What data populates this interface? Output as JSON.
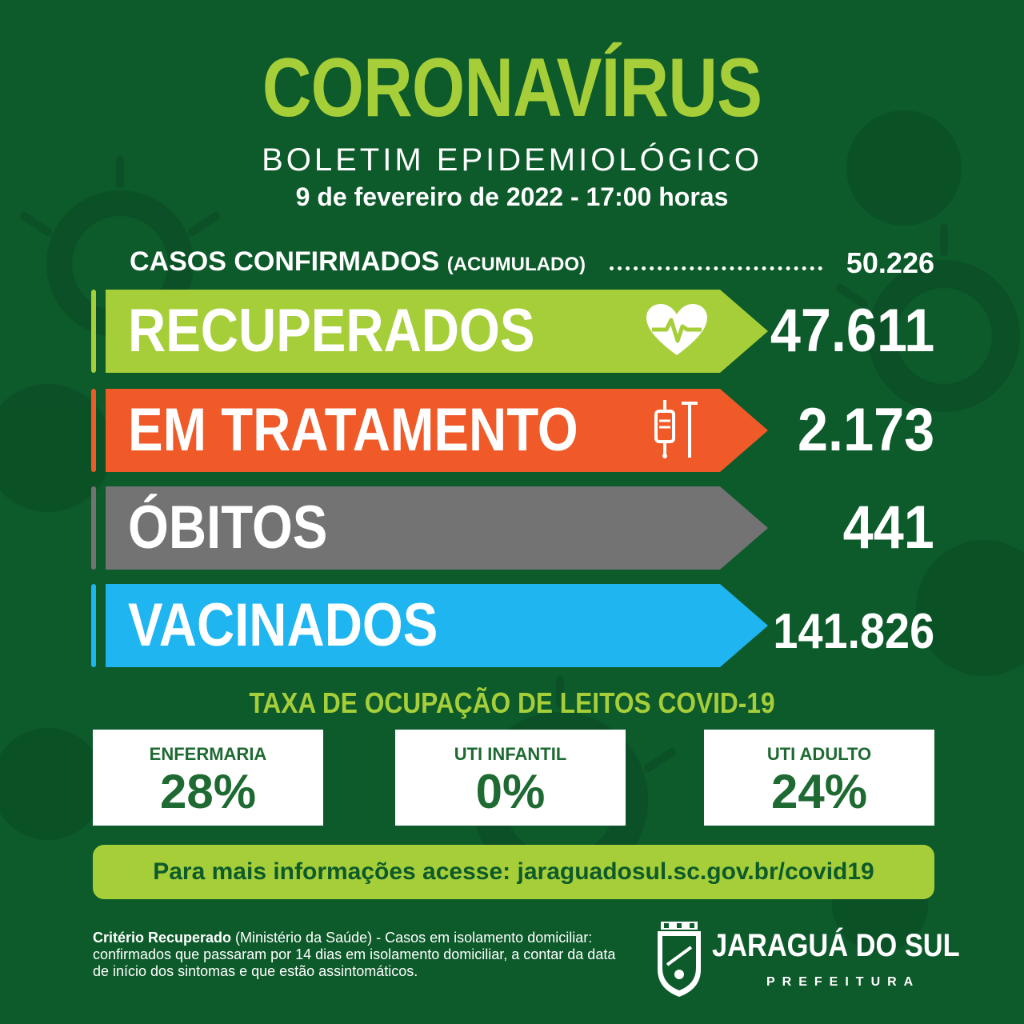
{
  "header": {
    "title": "CORONAVÍRUS",
    "subtitle": "BOLETIM EPIDEMIOLÓGICO",
    "date": "9 de fevereiro de 2022 - 17:00 horas"
  },
  "confirmed": {
    "label": "CASOS CONFIRMADOS",
    "sublabel": "(ACUMULADO)",
    "value": "50.226"
  },
  "stats": [
    {
      "label": "RECUPERADOS",
      "value": "47.611",
      "color": "#a6ce39",
      "icon": "heartbeat-icon"
    },
    {
      "label": "EM TRATAMENTO",
      "value": "2.173",
      "color": "#ef5a28",
      "icon": "iv-drip-icon"
    },
    {
      "label": "ÓBITOS",
      "value": "441",
      "color": "#737373",
      "icon": ""
    },
    {
      "label": "VACINADOS",
      "value": "141.826",
      "color": "#1eb5f0",
      "icon": ""
    }
  ],
  "occupancy": {
    "title": "TAXA DE OCUPAÇÃO DE LEITOS COVID-19",
    "cards": [
      {
        "label": "ENFERMARIA",
        "value": "28%"
      },
      {
        "label": "UTI INFANTIL",
        "value": "0%"
      },
      {
        "label": "UTI ADULTO",
        "value": "24%"
      }
    ]
  },
  "info": {
    "text": "Para mais informações acesse: jaraguadosul.sc.gov.br/covid19"
  },
  "footnote": {
    "bold": "Critério Recuperado",
    "text": " (Ministério da Saúde) - Casos em isolamento domiciliar: confirmados que passaram por 14 dias em isolamento domiciliar, a contar da data de início dos sintomas e que estão assintomáticos."
  },
  "logo": {
    "name": "JARAGUÁ DO SUL",
    "subtitle": "PREFEITURA"
  },
  "colors": {
    "background": "#0d5a2b",
    "accent_green": "#a6ce39",
    "card_text": "#1e6a32"
  }
}
